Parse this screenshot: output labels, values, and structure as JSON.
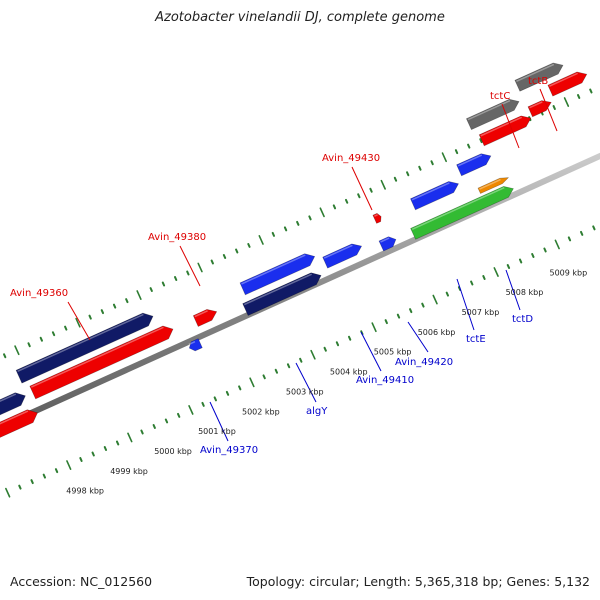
{
  "title": "Azotobacter vinelandii DJ, complete genome",
  "footer": {
    "accession": "Accession: NC_012560",
    "summary": "Topology: circular; Length: 5,365,318 bp; Genes: 5,132"
  },
  "colors": {
    "backbone": "#8c8c8c",
    "plus_strand_tick": "#2e7d32",
    "label_plus": "#dd0000",
    "label_minus": "#0000cc",
    "red": "#ee0000",
    "dark_navy": "#101a66",
    "blue": "#1a2eee",
    "gray": "#666666",
    "green": "#33bb33",
    "orange": "#ee8800"
  },
  "kbp_labels": [
    "4998 kbp",
    "4999 kbp",
    "5000 kbp",
    "5001 kbp",
    "5002 kbp",
    "5003 kbp",
    "5004 kbp",
    "5005 kbp",
    "5006 kbp",
    "5007 kbp",
    "5008 kbp",
    "5009 kbp"
  ],
  "plus_labels": [
    "Avin_49360",
    "Avin_49380",
    "Avin_49430",
    "tctC",
    "tctB"
  ],
  "minus_labels": [
    "Avin_49370",
    "algY",
    "Avin_49410",
    "Avin_49420",
    "tctE",
    "tctD"
  ]
}
